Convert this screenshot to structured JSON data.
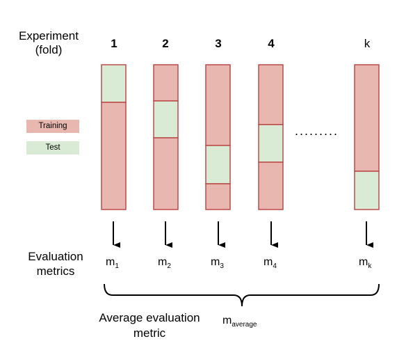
{
  "header": {
    "line1": "Experiment",
    "line2": "(fold)"
  },
  "folds": [
    {
      "label": "1",
      "metric_base": "m",
      "metric_sub": "1"
    },
    {
      "label": "2",
      "metric_base": "m",
      "metric_sub": "2"
    },
    {
      "label": "3",
      "metric_base": "m",
      "metric_sub": "3"
    },
    {
      "label": "4",
      "metric_base": "m",
      "metric_sub": "4"
    },
    {
      "label": "k",
      "metric_base": "m",
      "metric_sub": "k"
    }
  ],
  "legend": {
    "training": "Training",
    "test": "Test"
  },
  "ellipsis": ".........",
  "evaluation": {
    "line1": "Evaluation",
    "line2": "metrics"
  },
  "average": {
    "line1": "Average evaluation",
    "line2": "metric",
    "symbol_base": "m",
    "symbol_sub": "average"
  },
  "colors": {
    "training": "#e8b8b0",
    "test": "#d9ebd5",
    "stroke": "#b84040",
    "arrow": "#000000"
  }
}
